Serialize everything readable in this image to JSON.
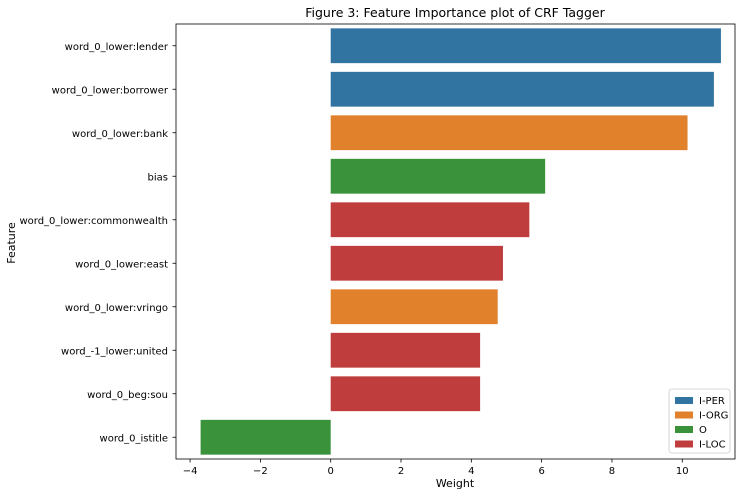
{
  "chart_data": {
    "type": "bar",
    "orientation": "horizontal",
    "title": "Figure 3: Feature Importance plot of CRF Tagger",
    "xlabel": "Weight",
    "ylabel": "Feature",
    "xlim": [
      -4.4,
      11.5
    ],
    "xticks": [
      -4,
      -2,
      0,
      2,
      4,
      6,
      8,
      10
    ],
    "xtick_labels": [
      "−4",
      "−2",
      "0",
      "2",
      "4",
      "6",
      "8",
      "10"
    ],
    "grid": false,
    "legend_position": "bottom-right",
    "legend": [
      {
        "name": "I-PER",
        "color": "#3274a1"
      },
      {
        "name": "I-ORG",
        "color": "#e1812c"
      },
      {
        "name": "O",
        "color": "#3a923a"
      },
      {
        "name": "I-LOC",
        "color": "#c03d3e"
      }
    ],
    "categories": [
      "word_0_lower:lender",
      "word_0_lower:borrower",
      "word_0_lower:bank",
      "bias",
      "word_0_lower:commonwealth",
      "word_0_lower:east",
      "word_0_lower:vringo",
      "word_-1_lower:united",
      "word_0_beg:sou",
      "word_0_istitle"
    ],
    "values": [
      11.1,
      10.9,
      10.15,
      6.1,
      5.65,
      4.9,
      4.75,
      4.25,
      4.25,
      -3.7
    ],
    "labels": [
      "I-PER",
      "I-PER",
      "I-ORG",
      "O",
      "I-LOC",
      "I-LOC",
      "I-ORG",
      "I-LOC",
      "I-LOC",
      "O"
    ]
  }
}
